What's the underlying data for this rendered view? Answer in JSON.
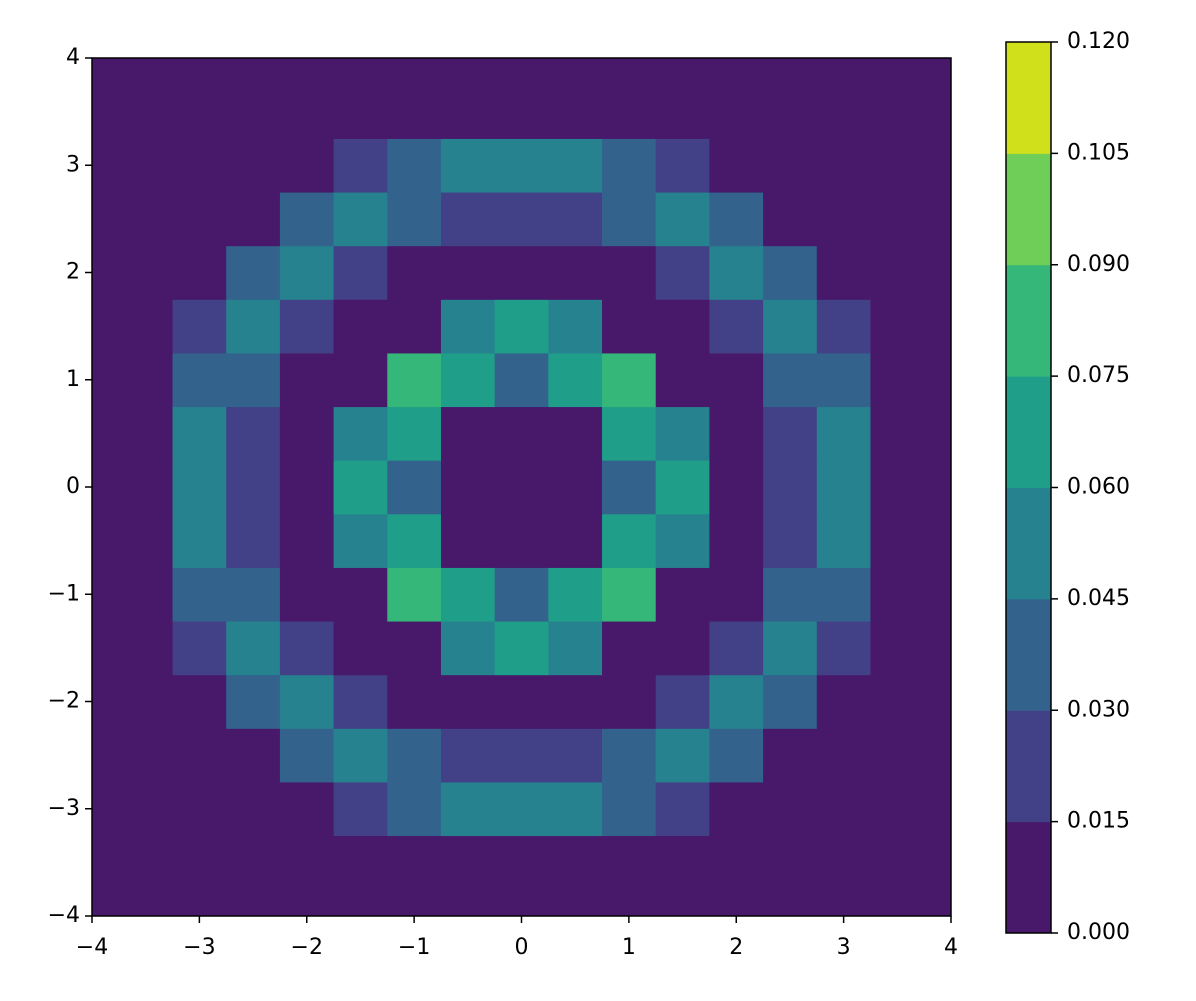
{
  "chart_data": {
    "type": "contourf",
    "x": [
      -4,
      -3.5,
      -3,
      -2.5,
      -2,
      -1.5,
      -1,
      -0.5,
      0,
      0.5,
      1,
      1.5,
      2,
      2.5,
      3,
      3.5,
      4
    ],
    "y": [
      -4,
      -3.5,
      -3,
      -2.5,
      -2,
      -1.5,
      -1,
      -0.5,
      0,
      0.5,
      1,
      1.5,
      2,
      2.5,
      3,
      3.5,
      4
    ],
    "z": [
      [
        0,
        0,
        0,
        0,
        0,
        0,
        0,
        0,
        0,
        0,
        0,
        0,
        0,
        0,
        0,
        0,
        0
      ],
      [
        0,
        0,
        0,
        0,
        0,
        0,
        0.002,
        0.004,
        0.006,
        0.004,
        0.002,
        0,
        0,
        0,
        0,
        0,
        0
      ],
      [
        0,
        0,
        0,
        0,
        0.002,
        0.015,
        0.036,
        0.049,
        0.052,
        0.049,
        0.036,
        0.015,
        0.002,
        0,
        0,
        0,
        0
      ],
      [
        0,
        0,
        0,
        0.004,
        0.031,
        0.055,
        0.042,
        0.026,
        0.02,
        0.026,
        0.042,
        0.055,
        0.031,
        0.004,
        0,
        0,
        0
      ],
      [
        0,
        0,
        0.002,
        0.031,
        0.053,
        0.02,
        0.004,
        0.002,
        0.002,
        0.002,
        0.004,
        0.02,
        0.053,
        0.031,
        0.002,
        0,
        0
      ],
      [
        0,
        0,
        0.015,
        0.055,
        0.02,
        0.002,
        0.011,
        0.047,
        0.065,
        0.047,
        0.011,
        0.002,
        0.02,
        0.055,
        0.015,
        0,
        0
      ],
      [
        0,
        0.002,
        0.036,
        0.042,
        0.004,
        0.011,
        0.081,
        0.069,
        0.043,
        0.069,
        0.081,
        0.011,
        0.004,
        0.042,
        0.036,
        0.002,
        0
      ],
      [
        0,
        0.004,
        0.049,
        0.026,
        0.002,
        0.047,
        0.069,
        0.005,
        0,
        0.005,
        0.069,
        0.047,
        0.002,
        0.026,
        0.049,
        0.004,
        0
      ],
      [
        0,
        0.006,
        0.052,
        0.02,
        0.002,
        0.065,
        0.043,
        0,
        0,
        0,
        0.043,
        0.065,
        0.002,
        0.02,
        0.052,
        0.006,
        0
      ],
      [
        0,
        0.004,
        0.049,
        0.026,
        0.002,
        0.047,
        0.069,
        0.005,
        0,
        0.005,
        0.069,
        0.047,
        0.002,
        0.026,
        0.049,
        0.004,
        0
      ],
      [
        0,
        0.002,
        0.036,
        0.042,
        0.004,
        0.011,
        0.081,
        0.069,
        0.043,
        0.069,
        0.081,
        0.011,
        0.004,
        0.042,
        0.036,
        0.002,
        0
      ],
      [
        0,
        0,
        0.015,
        0.055,
        0.02,
        0.002,
        0.011,
        0.047,
        0.065,
        0.047,
        0.011,
        0.002,
        0.02,
        0.055,
        0.015,
        0,
        0
      ],
      [
        0,
        0,
        0.002,
        0.031,
        0.053,
        0.02,
        0.004,
        0.002,
        0.002,
        0.002,
        0.004,
        0.02,
        0.053,
        0.031,
        0.002,
        0,
        0
      ],
      [
        0,
        0,
        0,
        0.004,
        0.031,
        0.055,
        0.042,
        0.026,
        0.02,
        0.026,
        0.042,
        0.055,
        0.031,
        0.004,
        0,
        0,
        0
      ],
      [
        0,
        0,
        0,
        0,
        0.002,
        0.015,
        0.036,
        0.049,
        0.052,
        0.049,
        0.036,
        0.015,
        0.002,
        0,
        0,
        0,
        0
      ],
      [
        0,
        0,
        0,
        0,
        0,
        0,
        0.002,
        0.004,
        0.006,
        0.004,
        0.002,
        0,
        0,
        0,
        0,
        0,
        0
      ],
      [
        0,
        0,
        0,
        0,
        0,
        0,
        0,
        0,
        0,
        0,
        0,
        0,
        0,
        0,
        0,
        0,
        0
      ]
    ],
    "xlim": [
      -4,
      4
    ],
    "ylim": [
      -4,
      4
    ],
    "xticks": [
      {
        "value": -4,
        "label": "−4"
      },
      {
        "value": -3,
        "label": "−3"
      },
      {
        "value": -2,
        "label": "−2"
      },
      {
        "value": -1,
        "label": "−1"
      },
      0,
      1,
      2,
      3,
      4
    ],
    "yticks": [
      {
        "value": -4,
        "label": "−4"
      },
      {
        "value": -3,
        "label": "−3"
      },
      {
        "value": -2,
        "label": "−2"
      },
      {
        "value": -1,
        "label": "−1"
      },
      0,
      1,
      2,
      3,
      4
    ],
    "levels": [
      {
        "value": 0,
        "label": "0.000"
      },
      {
        "value": 0.015,
        "label": "0.015"
      },
      {
        "value": 0.03,
        "label": "0.030"
      },
      {
        "value": 0.045,
        "label": "0.045"
      },
      {
        "value": 0.06,
        "label": "0.060"
      },
      {
        "value": 0.075,
        "label": "0.075"
      },
      {
        "value": 0.09,
        "label": "0.090"
      },
      {
        "value": 0.105,
        "label": "0.105"
      },
      {
        "value": 0.12,
        "label": "0.120"
      }
    ],
    "colors": [
      "#48186a",
      "#424086",
      "#33638d",
      "#26828e",
      "#1f9e89",
      "#35b779",
      "#6ece58",
      "#d0e11c"
    ]
  }
}
